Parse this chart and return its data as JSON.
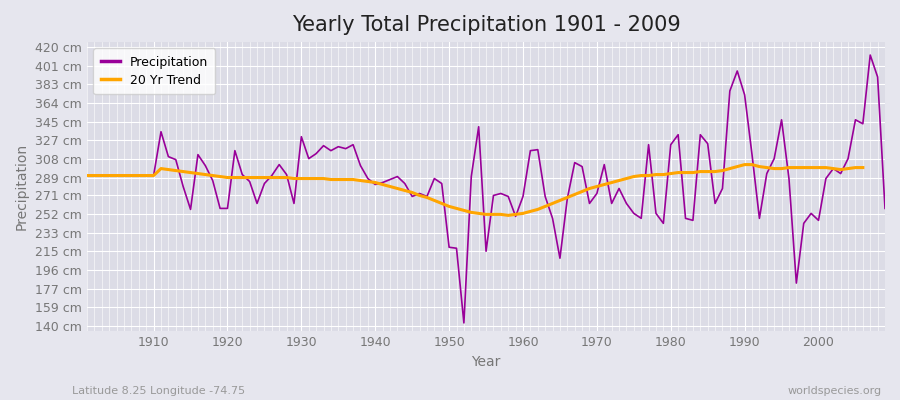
{
  "title": "Yearly Total Precipitation 1901 - 2009",
  "xlabel": "Year",
  "ylabel": "Precipitation",
  "subtitle_left": "Latitude 8.25 Longitude -74.75",
  "subtitle_right": "worldspecies.org",
  "years": [
    1901,
    1902,
    1903,
    1904,
    1905,
    1906,
    1907,
    1908,
    1909,
    1910,
    1911,
    1912,
    1913,
    1914,
    1915,
    1916,
    1917,
    1918,
    1919,
    1920,
    1921,
    1922,
    1923,
    1924,
    1925,
    1926,
    1927,
    1928,
    1929,
    1930,
    1931,
    1932,
    1933,
    1934,
    1935,
    1936,
    1937,
    1938,
    1939,
    1940,
    1941,
    1942,
    1943,
    1944,
    1945,
    1946,
    1947,
    1948,
    1949,
    1950,
    1951,
    1952,
    1953,
    1954,
    1955,
    1956,
    1957,
    1958,
    1959,
    1960,
    1961,
    1962,
    1963,
    1964,
    1965,
    1966,
    1967,
    1968,
    1969,
    1970,
    1971,
    1972,
    1973,
    1974,
    1975,
    1976,
    1977,
    1978,
    1979,
    1980,
    1981,
    1982,
    1983,
    1984,
    1985,
    1986,
    1987,
    1988,
    1989,
    1990,
    1991,
    1992,
    1993,
    1994,
    1995,
    1996,
    1997,
    1998,
    1999,
    2000,
    2001,
    2002,
    2003,
    2004,
    2005,
    2006,
    2007,
    2008,
    2009
  ],
  "precip": [
    291,
    291,
    291,
    291,
    291,
    291,
    291,
    291,
    291,
    291,
    335,
    310,
    307,
    280,
    257,
    312,
    301,
    286,
    258,
    258,
    316,
    292,
    285,
    263,
    283,
    291,
    302,
    292,
    263,
    330,
    308,
    313,
    321,
    316,
    320,
    318,
    322,
    301,
    288,
    282,
    284,
    287,
    290,
    283,
    270,
    273,
    270,
    288,
    283,
    219,
    218,
    143,
    290,
    340,
    215,
    271,
    273,
    270,
    250,
    270,
    316,
    317,
    270,
    248,
    208,
    268,
    304,
    300,
    263,
    273,
    302,
    263,
    278,
    263,
    253,
    248,
    322,
    253,
    243,
    322,
    332,
    248,
    246,
    332,
    323,
    263,
    278,
    376,
    396,
    372,
    312,
    248,
    293,
    308,
    347,
    288,
    183,
    243,
    253,
    246,
    288,
    298,
    293,
    308,
    347,
    343,
    412,
    390,
    258
  ],
  "trend": [
    291,
    291,
    291,
    291,
    291,
    291,
    291,
    291,
    291,
    291,
    298,
    297,
    296,
    295,
    294,
    293,
    292,
    291,
    290,
    289,
    289,
    289,
    289,
    289,
    289,
    289,
    289,
    289,
    288,
    288,
    288,
    288,
    288,
    287,
    287,
    287,
    287,
    286,
    285,
    284,
    282,
    280,
    278,
    276,
    274,
    271,
    269,
    266,
    263,
    260,
    258,
    256,
    254,
    253,
    252,
    252,
    252,
    251,
    252,
    253,
    255,
    257,
    260,
    263,
    266,
    269,
    272,
    275,
    278,
    280,
    282,
    284,
    286,
    288,
    290,
    291,
    291,
    292,
    292,
    293,
    294,
    294,
    294,
    295,
    295,
    295,
    296,
    298,
    300,
    302,
    302,
    300,
    299,
    298,
    298,
    299,
    299,
    299,
    299,
    299,
    299,
    298,
    297,
    298,
    299,
    299,
    null,
    null,
    null
  ],
  "precip_color": "#990099",
  "trend_color": "#FFA500",
  "bg_color": "#E6E6EE",
  "plot_bg_color": "#DCDCE6",
  "grid_color": "#FFFFFF",
  "yticks": [
    140,
    159,
    177,
    196,
    215,
    233,
    252,
    271,
    289,
    308,
    327,
    345,
    364,
    383,
    401,
    420
  ],
  "ylim": [
    135,
    425
  ],
  "xlim": [
    1901,
    2009
  ],
  "xticks": [
    1910,
    1920,
    1930,
    1940,
    1950,
    1960,
    1970,
    1980,
    1990,
    2000
  ],
  "title_fontsize": 15,
  "axis_fontsize": 10,
  "tick_fontsize": 9,
  "legend_fontsize": 9
}
